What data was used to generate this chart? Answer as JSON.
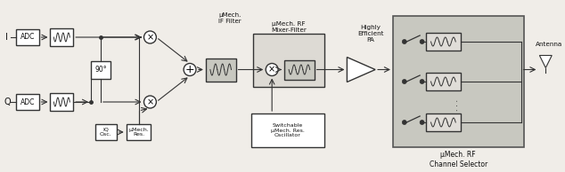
{
  "bg_color": "#f0ede8",
  "box_color": "#ffffff",
  "gray_box_color": "#c8c8c8",
  "light_gray_color": "#d8d5d0",
  "dark_color": "#333333",
  "line_color": "#333333",
  "fig_width": 6.34,
  "fig_height": 1.94,
  "title": "",
  "labels": {
    "I": "I",
    "Q": "Q",
    "ADC": "ADC",
    "filter1": "≈",
    "90deg": "90°",
    "sum": "+",
    "mult": "×",
    "IQ_osc": "IQ\nOsc.",
    "umech_res": "μMech.\nRes.",
    "umech_if": "μMech.\nIF Filter",
    "umech_rf_mf": "μMech. RF\nMixer-Filter",
    "switchable": "Switchable\nμMech. Res.\nOscillator",
    "highly_eff": "Highly\nEfficient\nPA",
    "umech_rf_cs": "μMech. RF\nChannel Selector",
    "antenna": "Antenna"
  }
}
